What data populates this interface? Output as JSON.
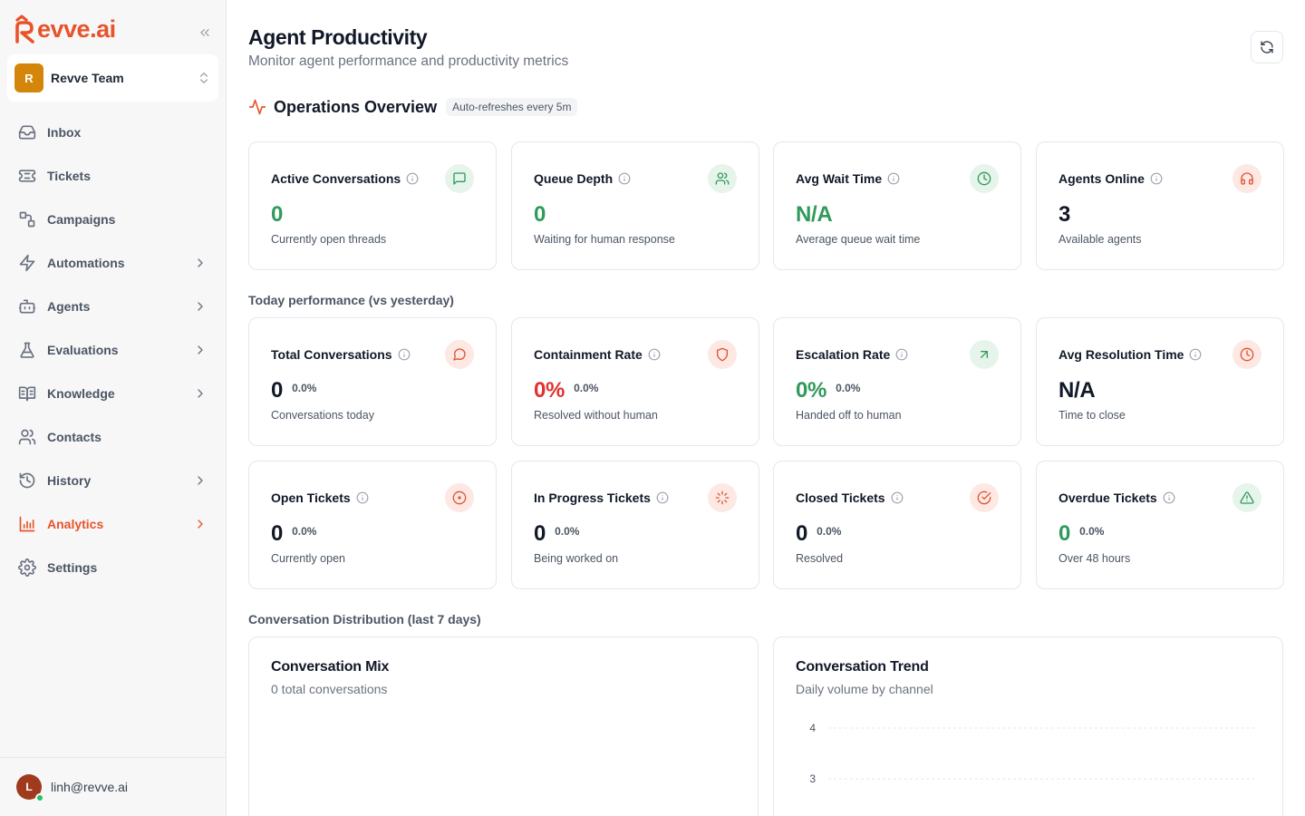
{
  "brand": {
    "name": "evve.ai",
    "color": "#e8532a"
  },
  "team": {
    "initial": "R",
    "name": "Revve Team"
  },
  "nav": [
    {
      "label": "Inbox",
      "icon": "inbox-icon",
      "has_children": false,
      "active": false
    },
    {
      "label": "Tickets",
      "icon": "ticket-icon",
      "has_children": false,
      "active": false
    },
    {
      "label": "Campaigns",
      "icon": "campaigns-icon",
      "has_children": false,
      "active": false
    },
    {
      "label": "Automations",
      "icon": "bolt-icon",
      "has_children": true,
      "active": false
    },
    {
      "label": "Agents",
      "icon": "bot-icon",
      "has_children": true,
      "active": false
    },
    {
      "label": "Evaluations",
      "icon": "flask-icon",
      "has_children": true,
      "active": false
    },
    {
      "label": "Knowledge",
      "icon": "book-icon",
      "has_children": true,
      "active": false
    },
    {
      "label": "Contacts",
      "icon": "users-icon",
      "has_children": false,
      "active": false
    },
    {
      "label": "History",
      "icon": "history-icon",
      "has_children": true,
      "active": false
    },
    {
      "label": "Analytics",
      "icon": "bar-chart-icon",
      "has_children": true,
      "active": true
    },
    {
      "label": "Settings",
      "icon": "gear-icon",
      "has_children": false,
      "active": false
    }
  ],
  "user": {
    "initial": "L",
    "email": "linh@revve.ai",
    "status": "online"
  },
  "page": {
    "title": "Agent Productivity",
    "subtitle": "Monitor agent performance and productivity metrics"
  },
  "ops": {
    "title": "Operations Overview",
    "badge": "Auto-refreshes every 5m"
  },
  "sections": {
    "today": "Today performance (vs yesterday)",
    "distribution": "Conversation Distribution (last 7 days)"
  },
  "overview_cards": [
    {
      "title": "Active Conversations",
      "value": "0",
      "caption": "Currently open threads",
      "icon": "message-square-icon",
      "tone": "green",
      "value_color": "green"
    },
    {
      "title": "Queue Depth",
      "value": "0",
      "caption": "Waiting for human response",
      "icon": "users-icon",
      "tone": "green",
      "value_color": "green"
    },
    {
      "title": "Avg Wait Time",
      "value": "N/A",
      "caption": "Average queue wait time",
      "icon": "clock-icon",
      "tone": "green",
      "value_color": "green"
    },
    {
      "title": "Agents Online",
      "value": "3",
      "caption": "Available agents",
      "icon": "headphones-icon",
      "tone": "red",
      "value_color": "dark"
    }
  ],
  "today_cards": [
    {
      "title": "Total Conversations",
      "value": "0",
      "pct": "0.0%",
      "caption": "Conversations today",
      "icon": "message-circle-icon",
      "tone": "red",
      "value_color": "dark"
    },
    {
      "title": "Containment Rate",
      "value": "0%",
      "pct": "0.0%",
      "caption": "Resolved without human",
      "icon": "shield-icon",
      "tone": "red",
      "value_color": "red"
    },
    {
      "title": "Escalation Rate",
      "value": "0%",
      "pct": "0.0%",
      "caption": "Handed off to human",
      "icon": "arrow-up-right-icon",
      "tone": "green",
      "value_color": "green"
    },
    {
      "title": "Avg Resolution Time",
      "value": "N/A",
      "pct": "",
      "caption": "Time to close",
      "icon": "clock-icon",
      "tone": "red",
      "value_color": "dark"
    }
  ],
  "ticket_cards": [
    {
      "title": "Open Tickets",
      "value": "0",
      "pct": "0.0%",
      "caption": "Currently open",
      "icon": "circle-dot-icon",
      "tone": "red",
      "value_color": "dark"
    },
    {
      "title": "In Progress Tickets",
      "value": "0",
      "pct": "0.0%",
      "caption": "Being worked on",
      "icon": "loader-icon",
      "tone": "red",
      "value_color": "dark"
    },
    {
      "title": "Closed Tickets",
      "value": "0",
      "pct": "0.0%",
      "caption": "Resolved",
      "icon": "check-circle-icon",
      "tone": "red",
      "value_color": "dark"
    },
    {
      "title": "Overdue Tickets",
      "value": "0",
      "pct": "0.0%",
      "caption": "Over 48 hours",
      "icon": "alert-triangle-icon",
      "tone": "green",
      "value_color": "green"
    }
  ],
  "mix": {
    "title": "Conversation Mix",
    "subtitle": "0 total conversations"
  },
  "trend": {
    "title": "Conversation Trend",
    "subtitle": "Daily volume by channel"
  },
  "chart_data": {
    "type": "line",
    "y_ticks_visible": [
      "4",
      "3"
    ],
    "grid": true,
    "series": []
  }
}
